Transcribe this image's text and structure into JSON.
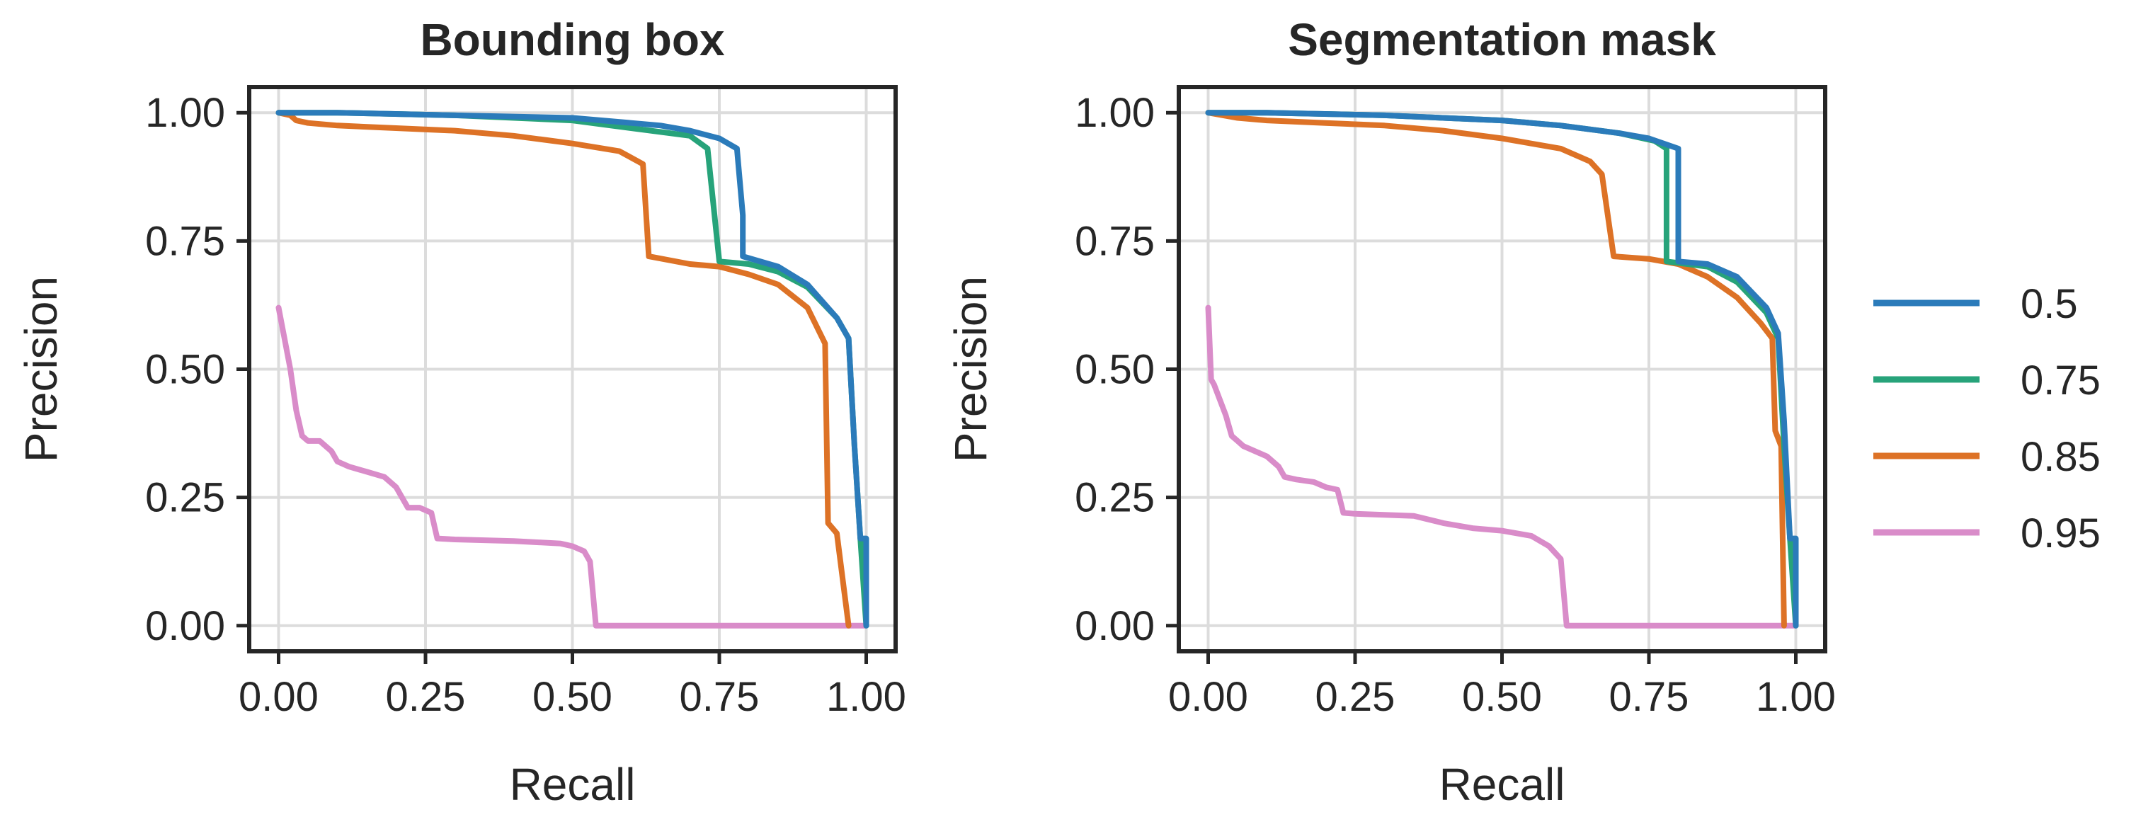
{
  "chart_data": {
    "type": "line",
    "colors": {
      "0.5": "#2b7bba",
      "0.75": "#27a37a",
      "0.85": "#dd7226",
      "0.95": "#d98cc9"
    },
    "legend": {
      "placement": "right",
      "entries": [
        "0.5",
        "0.75",
        "0.85",
        "0.95"
      ]
    },
    "panels": [
      {
        "title": "Bounding box",
        "xlabel": "Recall",
        "ylabel": "Precision",
        "xlim": [
          -0.05,
          1.05
        ],
        "ylim": [
          -0.05,
          1.05
        ],
        "xticks": [
          "0.00",
          "0.25",
          "0.50",
          "0.75",
          "1.00"
        ],
        "yticks": [
          "0.00",
          "0.25",
          "0.50",
          "0.75",
          "1.00"
        ],
        "grid": true,
        "series": [
          {
            "name": "0.5",
            "points": [
              [
                0,
                1
              ],
              [
                0.1,
                1
              ],
              [
                0.3,
                0.995
              ],
              [
                0.5,
                0.99
              ],
              [
                0.6,
                0.98
              ],
              [
                0.65,
                0.975
              ],
              [
                0.7,
                0.965
              ],
              [
                0.75,
                0.95
              ],
              [
                0.78,
                0.93
              ],
              [
                0.79,
                0.8
              ],
              [
                0.79,
                0.72
              ],
              [
                0.85,
                0.7
              ],
              [
                0.9,
                0.665
              ],
              [
                0.95,
                0.6
              ],
              [
                0.97,
                0.56
              ],
              [
                0.98,
                0.35
              ],
              [
                0.99,
                0.17
              ],
              [
                1,
                0.17
              ],
              [
                1,
                0
              ]
            ]
          },
          {
            "name": "0.75",
            "points": [
              [
                0,
                1
              ],
              [
                0.1,
                1
              ],
              [
                0.3,
                0.995
              ],
              [
                0.5,
                0.985
              ],
              [
                0.6,
                0.97
              ],
              [
                0.7,
                0.955
              ],
              [
                0.73,
                0.93
              ],
              [
                0.75,
                0.71
              ],
              [
                0.8,
                0.705
              ],
              [
                0.85,
                0.69
              ],
              [
                0.9,
                0.66
              ],
              [
                0.95,
                0.6
              ],
              [
                0.97,
                0.56
              ],
              [
                0.98,
                0.35
              ],
              [
                0.99,
                0.17
              ],
              [
                1,
                0
              ]
            ]
          },
          {
            "name": "0.85",
            "points": [
              [
                0,
                1
              ],
              [
                0.02,
                0.995
              ],
              [
                0.03,
                0.985
              ],
              [
                0.05,
                0.98
              ],
              [
                0.1,
                0.975
              ],
              [
                0.2,
                0.97
              ],
              [
                0.3,
                0.965
              ],
              [
                0.4,
                0.955
              ],
              [
                0.5,
                0.94
              ],
              [
                0.58,
                0.925
              ],
              [
                0.62,
                0.9
              ],
              [
                0.63,
                0.72
              ],
              [
                0.7,
                0.705
              ],
              [
                0.75,
                0.7
              ],
              [
                0.8,
                0.685
              ],
              [
                0.85,
                0.665
              ],
              [
                0.9,
                0.62
              ],
              [
                0.93,
                0.55
              ],
              [
                0.935,
                0.2
              ],
              [
                0.95,
                0.18
              ],
              [
                0.97,
                0
              ]
            ]
          },
          {
            "name": "0.95",
            "points": [
              [
                0,
                0.62
              ],
              [
                0.01,
                0.56
              ],
              [
                0.02,
                0.5
              ],
              [
                0.03,
                0.42
              ],
              [
                0.04,
                0.37
              ],
              [
                0.05,
                0.36
              ],
              [
                0.07,
                0.36
              ],
              [
                0.09,
                0.34
              ],
              [
                0.1,
                0.32
              ],
              [
                0.12,
                0.31
              ],
              [
                0.15,
                0.3
              ],
              [
                0.18,
                0.29
              ],
              [
                0.2,
                0.27
              ],
              [
                0.22,
                0.23
              ],
              [
                0.24,
                0.23
              ],
              [
                0.26,
                0.22
              ],
              [
                0.27,
                0.17
              ],
              [
                0.3,
                0.168
              ],
              [
                0.4,
                0.165
              ],
              [
                0.48,
                0.16
              ],
              [
                0.5,
                0.155
              ],
              [
                0.52,
                0.145
              ],
              [
                0.53,
                0.125
              ],
              [
                0.54,
                0
              ],
              [
                1,
                0
              ]
            ]
          }
        ]
      },
      {
        "title": "Segmentation mask",
        "xlabel": "Recall",
        "ylabel": "Precision",
        "xlim": [
          -0.05,
          1.05
        ],
        "ylim": [
          -0.05,
          1.05
        ],
        "xticks": [
          "0.00",
          "0.25",
          "0.50",
          "0.75",
          "1.00"
        ],
        "yticks": [
          "0.00",
          "0.25",
          "0.50",
          "0.75",
          "1.00"
        ],
        "grid": true,
        "series": [
          {
            "name": "0.5",
            "points": [
              [
                0,
                1
              ],
              [
                0.1,
                1
              ],
              [
                0.3,
                0.995
              ],
              [
                0.5,
                0.985
              ],
              [
                0.6,
                0.975
              ],
              [
                0.7,
                0.96
              ],
              [
                0.75,
                0.95
              ],
              [
                0.8,
                0.93
              ],
              [
                0.8,
                0.71
              ],
              [
                0.85,
                0.705
              ],
              [
                0.9,
                0.68
              ],
              [
                0.95,
                0.62
              ],
              [
                0.97,
                0.57
              ],
              [
                0.98,
                0.4
              ],
              [
                0.99,
                0.17
              ],
              [
                1,
                0.17
              ],
              [
                1,
                0
              ]
            ]
          },
          {
            "name": "0.75",
            "points": [
              [
                0,
                1
              ],
              [
                0.1,
                1
              ],
              [
                0.3,
                0.995
              ],
              [
                0.5,
                0.985
              ],
              [
                0.6,
                0.975
              ],
              [
                0.7,
                0.96
              ],
              [
                0.76,
                0.945
              ],
              [
                0.78,
                0.93
              ],
              [
                0.78,
                0.71
              ],
              [
                0.85,
                0.7
              ],
              [
                0.9,
                0.67
              ],
              [
                0.95,
                0.61
              ],
              [
                0.97,
                0.56
              ],
              [
                0.98,
                0.35
              ],
              [
                0.99,
                0.17
              ],
              [
                1,
                0
              ]
            ]
          },
          {
            "name": "0.85",
            "points": [
              [
                0,
                1
              ],
              [
                0.05,
                0.99
              ],
              [
                0.1,
                0.985
              ],
              [
                0.2,
                0.98
              ],
              [
                0.3,
                0.975
              ],
              [
                0.4,
                0.965
              ],
              [
                0.5,
                0.95
              ],
              [
                0.6,
                0.93
              ],
              [
                0.65,
                0.905
              ],
              [
                0.67,
                0.88
              ],
              [
                0.68,
                0.8
              ],
              [
                0.69,
                0.72
              ],
              [
                0.75,
                0.715
              ],
              [
                0.8,
                0.705
              ],
              [
                0.85,
                0.68
              ],
              [
                0.9,
                0.64
              ],
              [
                0.94,
                0.59
              ],
              [
                0.96,
                0.56
              ],
              [
                0.965,
                0.38
              ],
              [
                0.975,
                0.35
              ],
              [
                0.98,
                0
              ]
            ]
          },
          {
            "name": "0.95",
            "points": [
              [
                0,
                0.62
              ],
              [
                0.005,
                0.48
              ],
              [
                0.01,
                0.47
              ],
              [
                0.03,
                0.41
              ],
              [
                0.04,
                0.37
              ],
              [
                0.05,
                0.36
              ],
              [
                0.06,
                0.35
              ],
              [
                0.08,
                0.34
              ],
              [
                0.1,
                0.33
              ],
              [
                0.12,
                0.31
              ],
              [
                0.13,
                0.29
              ],
              [
                0.15,
                0.285
              ],
              [
                0.18,
                0.28
              ],
              [
                0.2,
                0.27
              ],
              [
                0.22,
                0.265
              ],
              [
                0.23,
                0.22
              ],
              [
                0.25,
                0.218
              ],
              [
                0.3,
                0.216
              ],
              [
                0.35,
                0.214
              ],
              [
                0.4,
                0.2
              ],
              [
                0.45,
                0.19
              ],
              [
                0.5,
                0.185
              ],
              [
                0.55,
                0.175
              ],
              [
                0.58,
                0.155
              ],
              [
                0.6,
                0.13
              ],
              [
                0.61,
                0
              ],
              [
                1,
                0
              ]
            ]
          }
        ]
      }
    ]
  }
}
